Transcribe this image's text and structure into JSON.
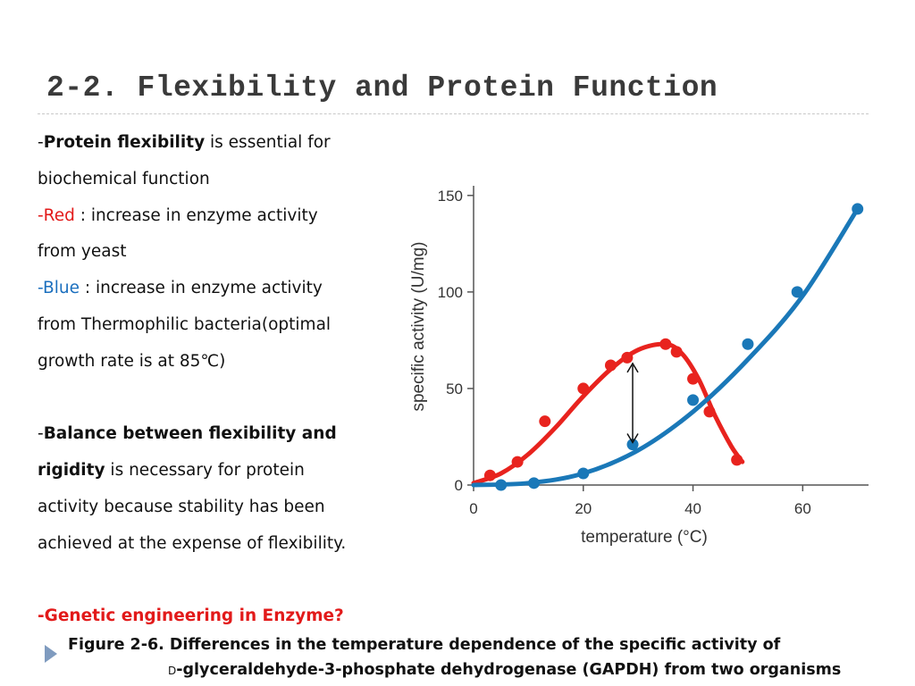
{
  "slide": {
    "title": "2-2. Flexibility and Protein Function"
  },
  "body": {
    "p1_dash": "-",
    "p1_bold": "Protein flexibility",
    "p1_rest": " is essential for",
    "p1_line2": "biochemical function",
    "red_label": "-Red",
    "red_rest": " : increase in enzyme activity",
    "red_line2": "from yeast",
    "blue_label": "-Blue",
    "blue_rest": " : increase in enzyme activity",
    "blue_line2": "from Thermophilic bacteria(optimal",
    "blue_line3": "growth rate is at 85℃)",
    "p2_dash": "-",
    "p2_bold1": "Balance between flexibility and",
    "p2_bold2": "rigidity",
    "p2_rest": " is necessary for protein",
    "p2_line3": "activity because stability has been",
    "p2_line4": "achieved at the expense of flexibility.",
    "p3": "-Genetic engineering in Enzyme?"
  },
  "caption": {
    "line1": "Figure 2-6. Differences in the temperature dependence of the specific activity of",
    "line2_prefix": "D",
    "line2": "-glyceraldehyde-3-phosphate dehydrogenase (GAPDH) from two organisms"
  },
  "colors": {
    "red_series": "#e8231e",
    "blue_series": "#1a78b8"
  },
  "chart_data": {
    "type": "scatter",
    "xlabel": "temperature (°C)",
    "ylabel": "specific activity (U/mg)",
    "xlim": [
      0,
      72
    ],
    "ylim": [
      0,
      155
    ],
    "xticks": [
      "0",
      "20",
      "40",
      "60"
    ],
    "yticks": [
      "0",
      "50",
      "100",
      "150"
    ],
    "grid": false,
    "series": [
      {
        "color": "#e8231e",
        "points": [
          [
            3,
            5
          ],
          [
            8,
            12
          ],
          [
            13,
            33
          ],
          [
            20,
            50
          ],
          [
            25,
            62
          ],
          [
            28,
            66
          ],
          [
            35,
            73
          ],
          [
            37,
            69
          ],
          [
            40,
            55
          ],
          [
            43,
            38
          ],
          [
            48,
            13
          ]
        ],
        "curve": [
          [
            0,
            1
          ],
          [
            5,
            6
          ],
          [
            10,
            16
          ],
          [
            15,
            30
          ],
          [
            20,
            46
          ],
          [
            25,
            60
          ],
          [
            30,
            70
          ],
          [
            35,
            73
          ],
          [
            38,
            68
          ],
          [
            41,
            55
          ],
          [
            44,
            36
          ],
          [
            47,
            20
          ],
          [
            49,
            12
          ]
        ]
      },
      {
        "color": "#1a78b8",
        "points": [
          [
            5,
            0
          ],
          [
            11,
            1
          ],
          [
            20,
            6
          ],
          [
            29,
            21
          ],
          [
            40,
            44
          ],
          [
            50,
            73
          ],
          [
            59,
            100
          ],
          [
            70,
            143
          ]
        ],
        "curve": [
          [
            0,
            0
          ],
          [
            10,
            1
          ],
          [
            20,
            6
          ],
          [
            30,
            18
          ],
          [
            40,
            38
          ],
          [
            50,
            65
          ],
          [
            60,
            98
          ],
          [
            70,
            143
          ]
        ]
      }
    ],
    "annotation": {
      "type": "double-arrow",
      "x": 29,
      "y1": 22,
      "y2": 63
    }
  }
}
